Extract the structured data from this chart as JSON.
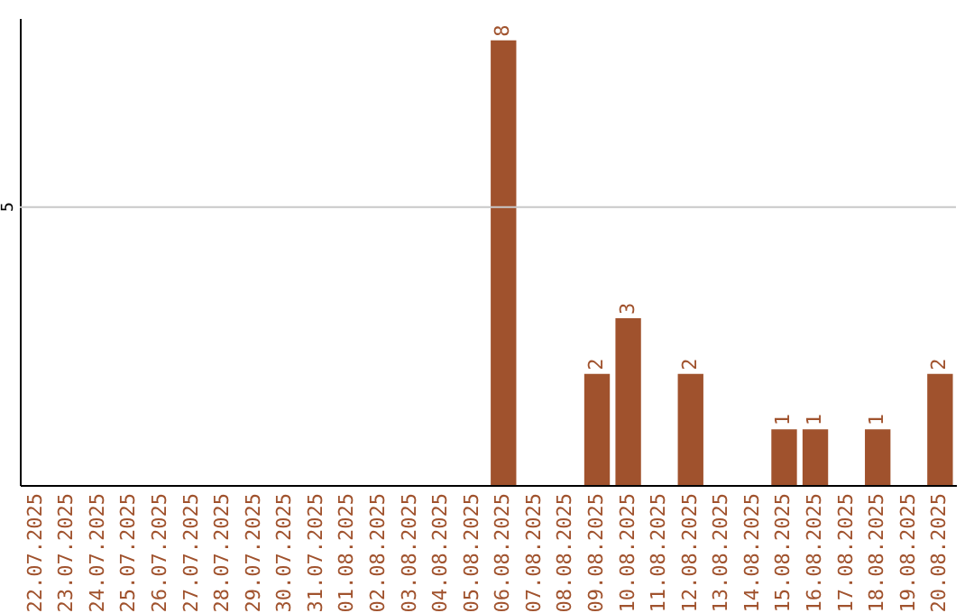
{
  "chart_data": {
    "type": "bar",
    "categories": [
      "22.07.2025",
      "23.07.2025",
      "24.07.2025",
      "25.07.2025",
      "26.07.2025",
      "27.07.2025",
      "28.07.2025",
      "29.07.2025",
      "30.07.2025",
      "31.07.2025",
      "01.08.2025",
      "02.08.2025",
      "03.08.2025",
      "04.08.2025",
      "05.08.2025",
      "06.08.2025",
      "07.08.2025",
      "08.08.2025",
      "09.08.2025",
      "10.08.2025",
      "11.08.2025",
      "12.08.2025",
      "13.08.2025",
      "14.08.2025",
      "15.08.2025",
      "16.08.2025",
      "17.08.2025",
      "18.08.2025",
      "19.08.2025",
      "20.08.2025"
    ],
    "values": [
      null,
      null,
      null,
      null,
      null,
      null,
      null,
      null,
      null,
      null,
      null,
      null,
      null,
      null,
      null,
      8,
      null,
      null,
      2,
      3,
      null,
      2,
      null,
      null,
      1,
      1,
      null,
      1,
      null,
      2
    ],
    "value_labels": [
      null,
      null,
      null,
      null,
      null,
      null,
      null,
      null,
      null,
      null,
      null,
      null,
      null,
      null,
      null,
      "8",
      null,
      null,
      "2",
      "3",
      null,
      "2",
      null,
      null,
      "1",
      "1",
      null,
      "1",
      null,
      "2"
    ],
    "color": "#a0522d",
    "ylim": [
      0,
      8.4
    ],
    "tick_labels": "x",
    "ref_lines": [
      {
        "axis": "y",
        "value": 5,
        "label": "5",
        "color": "#c8c8c8"
      }
    ]
  }
}
